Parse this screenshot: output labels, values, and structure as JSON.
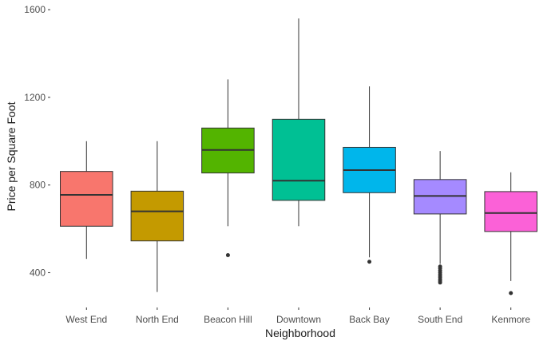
{
  "chart_data": {
    "type": "boxplot",
    "title": "",
    "xlabel": "Neighborhood",
    "ylabel": "Price per Square Foot",
    "ylim": [
      245,
      1615
    ],
    "yticks": [
      400,
      800,
      1200,
      1600
    ],
    "grid": false,
    "legend": "none",
    "categories": [
      "West End",
      "North End",
      "Beacon Hill",
      "Downtown",
      "Back Bay",
      "South End",
      "Kenmore"
    ],
    "series": [
      {
        "category": "West End",
        "color": "#F8766D",
        "min": 463,
        "q1": 612,
        "median": 755,
        "q3": 862,
        "max": 1000,
        "outliers": []
      },
      {
        "category": "North End",
        "color": "#C49A00",
        "min": 312,
        "q1": 545,
        "median": 680,
        "q3": 772,
        "max": 1000,
        "outliers": []
      },
      {
        "category": "Beacon Hill",
        "color": "#53B400",
        "min": 612,
        "q1": 855,
        "median": 960,
        "q3": 1060,
        "max": 1282,
        "outliers": [
          480
        ]
      },
      {
        "category": "Downtown",
        "color": "#00C094",
        "min": 612,
        "q1": 730,
        "median": 820,
        "q3": 1100,
        "max": 1560,
        "outliers": []
      },
      {
        "category": "Back Bay",
        "color": "#00B6EB",
        "min": 470,
        "q1": 765,
        "median": 868,
        "q3": 972,
        "max": 1250,
        "outliers": [
          450
        ]
      },
      {
        "category": "South End",
        "color": "#A58AFF",
        "min": 440,
        "q1": 668,
        "median": 750,
        "q3": 825,
        "max": 955,
        "outliers": [
          428,
          420,
          410,
          400,
          390,
          380,
          370,
          362,
          355
        ]
      },
      {
        "category": "Kenmore",
        "color": "#FB61D7",
        "min": 362,
        "q1": 588,
        "median": 672,
        "q3": 770,
        "max": 858,
        "outliers": [
          307
        ]
      }
    ]
  }
}
